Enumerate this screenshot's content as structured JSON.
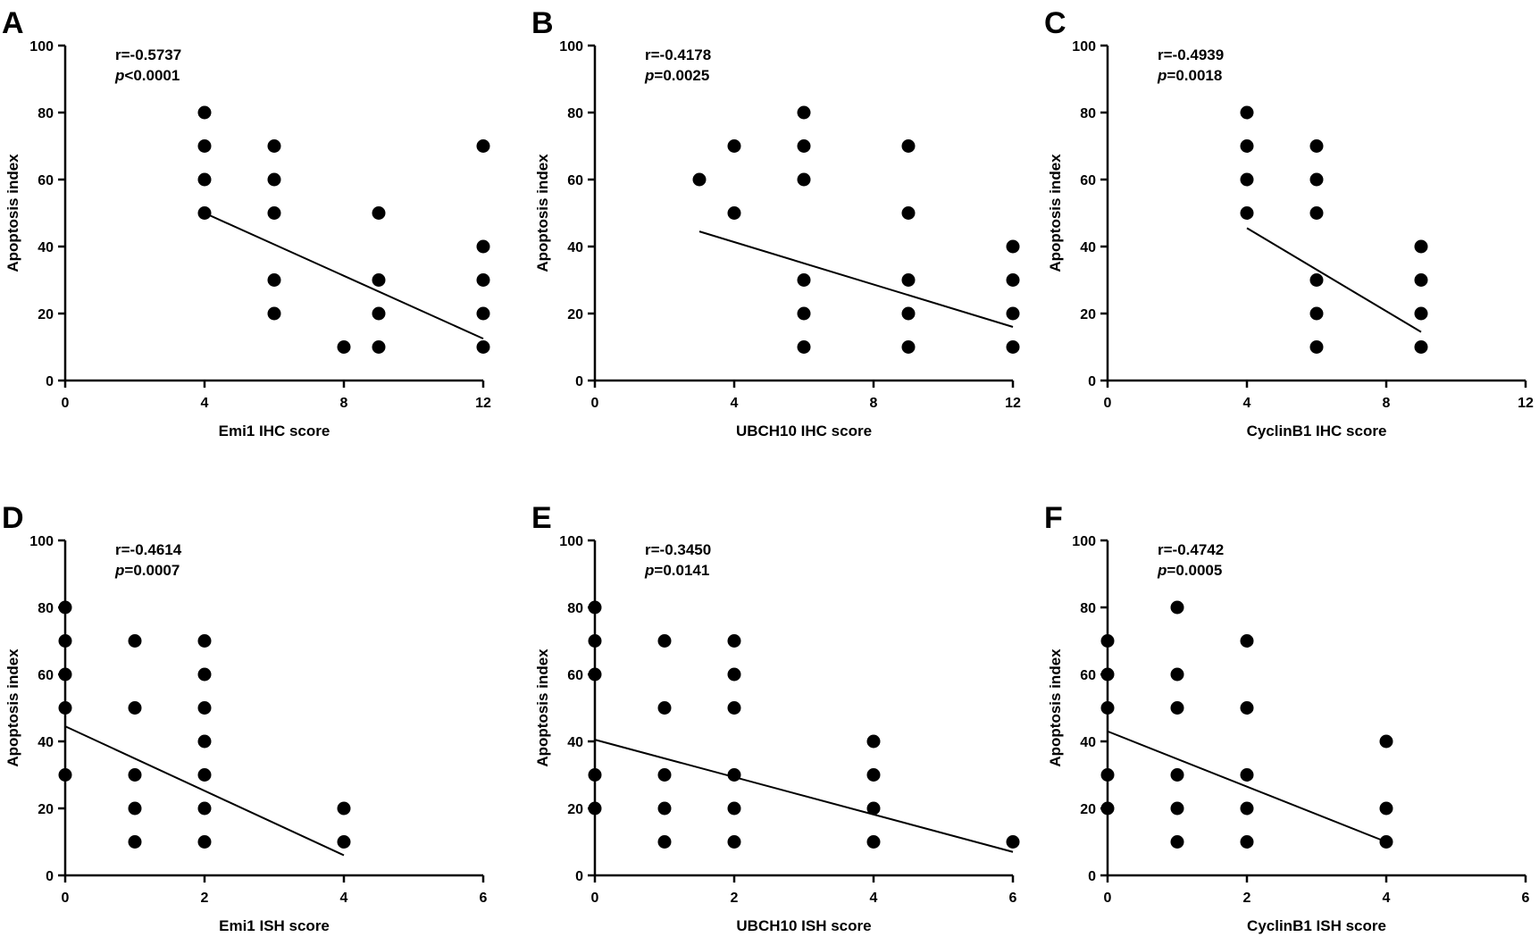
{
  "chart_data": [
    {
      "type": "scatter",
      "panel": "A",
      "xlabel": "Emi1 IHC score",
      "ylabel": "Apoptosis index",
      "xlim": [
        0,
        12
      ],
      "ylim": [
        0,
        100
      ],
      "xticks": [
        0,
        4,
        8,
        12
      ],
      "yticks": [
        0,
        20,
        40,
        60,
        80,
        100
      ],
      "stat_r": "r=-0.5737",
      "stat_p_symbol": "p",
      "stat_p_value": "<0.0001",
      "points": [
        [
          4,
          80
        ],
        [
          4,
          70
        ],
        [
          4,
          60
        ],
        [
          4,
          50
        ],
        [
          6,
          70
        ],
        [
          6,
          60
        ],
        [
          6,
          50
        ],
        [
          6,
          30
        ],
        [
          6,
          20
        ],
        [
          8,
          10
        ],
        [
          9,
          50
        ],
        [
          9,
          30
        ],
        [
          9,
          20
        ],
        [
          9,
          10
        ],
        [
          12,
          70
        ],
        [
          12,
          40
        ],
        [
          12,
          30
        ],
        [
          12,
          20
        ],
        [
          12,
          10
        ]
      ],
      "regression": [
        [
          4,
          50
        ],
        [
          12,
          12.5
        ]
      ]
    },
    {
      "type": "scatter",
      "panel": "B",
      "xlabel": "UBCH10 IHC score",
      "ylabel": "Apoptosis index",
      "xlim": [
        0,
        12
      ],
      "ylim": [
        0,
        100
      ],
      "xticks": [
        0,
        4,
        8,
        12
      ],
      "yticks": [
        0,
        20,
        40,
        60,
        80,
        100
      ],
      "stat_r": "r=-0.4178",
      "stat_p_symbol": "p",
      "stat_p_value": "=0.0025",
      "points": [
        [
          3,
          60
        ],
        [
          4,
          70
        ],
        [
          4,
          50
        ],
        [
          6,
          80
        ],
        [
          6,
          70
        ],
        [
          6,
          60
        ],
        [
          6,
          30
        ],
        [
          6,
          20
        ],
        [
          6,
          10
        ],
        [
          9,
          70
        ],
        [
          9,
          50
        ],
        [
          9,
          30
        ],
        [
          9,
          20
        ],
        [
          9,
          10
        ],
        [
          12,
          40
        ],
        [
          12,
          30
        ],
        [
          12,
          20
        ],
        [
          12,
          10
        ]
      ],
      "regression": [
        [
          3,
          44.5
        ],
        [
          12,
          16
        ]
      ]
    },
    {
      "type": "scatter",
      "panel": "C",
      "xlabel": "CyclinB1 IHC score",
      "ylabel": "Apoptosis index",
      "xlim": [
        0,
        12
      ],
      "ylim": [
        0,
        100
      ],
      "xticks": [
        0,
        4,
        8,
        12
      ],
      "yticks": [
        0,
        20,
        40,
        60,
        80,
        100
      ],
      "stat_r": "r=-0.4939",
      "stat_p_symbol": "p",
      "stat_p_value": "=0.0018",
      "points": [
        [
          4,
          80
        ],
        [
          4,
          70
        ],
        [
          4,
          60
        ],
        [
          4,
          50
        ],
        [
          6,
          70
        ],
        [
          6,
          60
        ],
        [
          6,
          50
        ],
        [
          6,
          30
        ],
        [
          6,
          20
        ],
        [
          6,
          10
        ],
        [
          9,
          40
        ],
        [
          9,
          30
        ],
        [
          9,
          20
        ],
        [
          9,
          10
        ]
      ],
      "regression": [
        [
          4,
          45.5
        ],
        [
          9,
          14.5
        ]
      ]
    },
    {
      "type": "scatter",
      "panel": "D",
      "xlabel": "Emi1 ISH score",
      "ylabel": "Apoptosis index",
      "xlim": [
        0,
        6
      ],
      "ylim": [
        0,
        100
      ],
      "xticks": [
        0,
        2,
        4,
        6
      ],
      "yticks": [
        0,
        20,
        40,
        60,
        80,
        100
      ],
      "stat_r": "r=-0.4614",
      "stat_p_symbol": "p",
      "stat_p_value": "=0.0007",
      "points": [
        [
          0,
          80
        ],
        [
          0,
          70
        ],
        [
          0,
          60
        ],
        [
          0,
          50
        ],
        [
          0,
          30
        ],
        [
          1,
          70
        ],
        [
          1,
          50
        ],
        [
          1,
          30
        ],
        [
          1,
          20
        ],
        [
          1,
          10
        ],
        [
          2,
          70
        ],
        [
          2,
          60
        ],
        [
          2,
          50
        ],
        [
          2,
          40
        ],
        [
          2,
          30
        ],
        [
          2,
          20
        ],
        [
          2,
          10
        ],
        [
          4,
          20
        ],
        [
          4,
          10
        ]
      ],
      "regression": [
        [
          0,
          44.5
        ],
        [
          4,
          6
        ]
      ]
    },
    {
      "type": "scatter",
      "panel": "E",
      "xlabel": "UBCH10 ISH score",
      "ylabel": "Apoptosis index",
      "xlim": [
        0,
        6
      ],
      "ylim": [
        0,
        100
      ],
      "xticks": [
        0,
        2,
        4,
        6
      ],
      "yticks": [
        0,
        20,
        40,
        60,
        80,
        100
      ],
      "stat_r": "r=-0.3450",
      "stat_p_symbol": "p",
      "stat_p_value": "=0.0141",
      "points": [
        [
          0,
          80
        ],
        [
          0,
          70
        ],
        [
          0,
          60
        ],
        [
          0,
          30
        ],
        [
          0,
          20
        ],
        [
          1,
          70
        ],
        [
          1,
          50
        ],
        [
          1,
          30
        ],
        [
          1,
          20
        ],
        [
          1,
          10
        ],
        [
          2,
          70
        ],
        [
          2,
          60
        ],
        [
          2,
          50
        ],
        [
          2,
          30
        ],
        [
          2,
          20
        ],
        [
          2,
          10
        ],
        [
          4,
          40
        ],
        [
          4,
          30
        ],
        [
          4,
          20
        ],
        [
          4,
          10
        ],
        [
          6,
          10
        ]
      ],
      "regression": [
        [
          0,
          40.5
        ],
        [
          6,
          7
        ]
      ]
    },
    {
      "type": "scatter",
      "panel": "F",
      "xlabel": "CyclinB1 ISH score",
      "ylabel": "Apoptosis index",
      "xlim": [
        0,
        6
      ],
      "ylim": [
        0,
        100
      ],
      "xticks": [
        0,
        2,
        4,
        6
      ],
      "yticks": [
        0,
        20,
        40,
        60,
        80,
        100
      ],
      "stat_r": "r=-0.4742",
      "stat_p_symbol": "p",
      "stat_p_value": "=0.0005",
      "points": [
        [
          0,
          70
        ],
        [
          0,
          60
        ],
        [
          0,
          50
        ],
        [
          0,
          30
        ],
        [
          0,
          20
        ],
        [
          1,
          80
        ],
        [
          1,
          60
        ],
        [
          1,
          50
        ],
        [
          1,
          30
        ],
        [
          1,
          20
        ],
        [
          1,
          10
        ],
        [
          2,
          70
        ],
        [
          2,
          50
        ],
        [
          2,
          30
        ],
        [
          2,
          20
        ],
        [
          2,
          10
        ],
        [
          4,
          40
        ],
        [
          4,
          20
        ],
        [
          4,
          10
        ]
      ],
      "regression": [
        [
          0,
          43
        ],
        [
          4,
          10
        ]
      ]
    }
  ]
}
